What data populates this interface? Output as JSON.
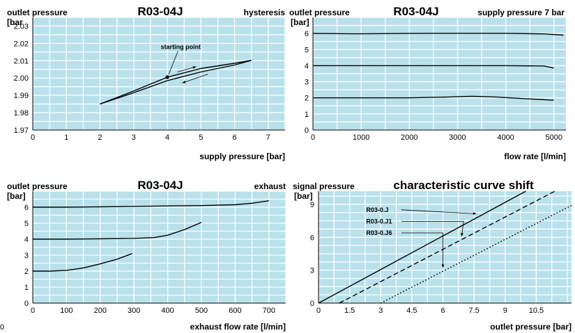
{
  "footer_mark": "0",
  "chart_data": [
    {
      "type": "line",
      "title": "R03-04J",
      "ylabel": "outlet pressure",
      "yunit": "[bar",
      "note": "hysteresis",
      "xlabel": "supply pressure [bar]",
      "xlim": [
        0,
        7.5
      ],
      "ylim": [
        1.97,
        2.035
      ],
      "xticks": [
        "0",
        "1",
        "2",
        "3",
        "4",
        "5",
        "6",
        "7"
      ],
      "xtick_values": [
        0,
        1,
        2,
        3,
        4,
        5,
        6,
        7
      ],
      "yticks": [
        "1.97",
        "1.98",
        "1.99",
        "2.00",
        "2.01",
        "2.02",
        "2.03"
      ],
      "ytick_values": [
        1.97,
        1.98,
        1.99,
        2.0,
        2.01,
        2.02,
        2.03
      ],
      "grid": {
        "x": 0.5,
        "y": 0.005
      },
      "series": [
        {
          "style": "solid",
          "x": [
            2,
            3,
            4,
            5,
            6,
            6.5
          ],
          "y": [
            1.985,
            1.9925,
            2.0005,
            2.0055,
            2.0085,
            2.0102
          ]
        },
        {
          "style": "solid",
          "x": [
            2,
            3,
            4,
            5,
            6,
            6.5
          ],
          "y": [
            1.985,
            1.9915,
            1.9985,
            2.0035,
            2.0075,
            2.0102
          ]
        }
      ],
      "annotations": [
        {
          "text": "starting point",
          "x": 4.4,
          "y": 2.0168,
          "target": [
            4.0,
            2.0005
          ],
          "marker": true
        },
        {
          "text": "",
          "arrow_from": [
            4.3,
            2.0035
          ],
          "arrow_to": [
            4.85,
            2.0065
          ]
        },
        {
          "text": "",
          "arrow_from": [
            5.2,
            2.0022
          ],
          "arrow_to": [
            4.45,
            1.9972
          ]
        }
      ]
    },
    {
      "type": "line",
      "title": "R03-04J",
      "ylabel": "outlet pressure",
      "yunit": "[bar]",
      "note": "supply pressure 7 bar",
      "xlabel": "flow rate [l/min]",
      "xlim": [
        0,
        5250
      ],
      "ylim": [
        0,
        7
      ],
      "xticks": [
        "0",
        "1000",
        "2000",
        "3000",
        "4000",
        "5000"
      ],
      "xtick_values": [
        0,
        1000,
        2000,
        3000,
        4000,
        5000
      ],
      "yticks": [
        "0",
        "1",
        "2",
        "3",
        "4",
        "5",
        "6"
      ],
      "ytick_values": [
        0,
        1,
        2,
        3,
        4,
        5,
        6
      ],
      "grid": {
        "x": 500,
        "y": 0.5
      },
      "series": [
        {
          "style": "solid",
          "x": [
            0,
            1000,
            2000,
            3000,
            4000,
            4800,
            5200
          ],
          "y": [
            6,
            5.98,
            6.0,
            6.01,
            6.01,
            5.97,
            5.9
          ]
        },
        {
          "style": "solid",
          "x": [
            0,
            1000,
            2000,
            3000,
            4000,
            4800,
            5000
          ],
          "y": [
            4,
            4.0,
            4.0,
            4.0,
            4.0,
            3.98,
            3.85
          ]
        },
        {
          "style": "solid",
          "x": [
            0,
            1000,
            2000,
            2800,
            3300,
            3800,
            4400,
            5000
          ],
          "y": [
            2,
            2.0,
            2.0,
            2.05,
            2.1,
            2.05,
            1.95,
            1.85
          ]
        }
      ]
    },
    {
      "type": "line",
      "title": "R03-04J",
      "ylabel": "outlet pressure",
      "yunit": "[bar]",
      "note": "exhaust",
      "xlabel": "exhaust flow rate [l/min]",
      "xlim": [
        0,
        750
      ],
      "ylim": [
        0,
        7
      ],
      "xticks": [
        "0",
        "100",
        "200",
        "300",
        "400",
        "500",
        "600",
        "700"
      ],
      "xtick_values": [
        0,
        100,
        200,
        300,
        400,
        500,
        600,
        700
      ],
      "yticks": [
        "0",
        "1",
        "2",
        "3",
        "4",
        "5",
        "6"
      ],
      "ytick_values": [
        0,
        1,
        2,
        3,
        4,
        5,
        6
      ],
      "grid": {
        "x": 50,
        "y": 0.5
      },
      "series": [
        {
          "style": "solid",
          "x": [
            0,
            100,
            200,
            300,
            400,
            500,
            600,
            650,
            700
          ],
          "y": [
            6,
            6.0,
            6.02,
            6.05,
            6.08,
            6.1,
            6.15,
            6.25,
            6.4
          ]
        },
        {
          "style": "solid",
          "x": [
            0,
            100,
            200,
            300,
            360,
            400,
            450,
            500
          ],
          "y": [
            4,
            4.0,
            4.02,
            4.05,
            4.1,
            4.25,
            4.6,
            5.05
          ]
        },
        {
          "style": "solid",
          "x": [
            0,
            50,
            100,
            150,
            200,
            250,
            295
          ],
          "y": [
            2,
            2.0,
            2.05,
            2.2,
            2.45,
            2.75,
            3.1
          ]
        }
      ]
    },
    {
      "type": "line",
      "title": "characteristic curve shift",
      "ylabel": "signal pressure",
      "yunit": "[bar]",
      "xlabel": "outlet pressure [bar]",
      "xlim": [
        0,
        12.2
      ],
      "ylim": [
        0,
        10.2
      ],
      "xticks": [
        "0",
        "1.5",
        "3",
        "4.5",
        "6",
        "7.5",
        "9",
        "10.5"
      ],
      "xtick_values": [
        0,
        1.5,
        3,
        4.5,
        6,
        7.5,
        9,
        10.5
      ],
      "yticks": [
        "0",
        "3",
        "6",
        "9"
      ],
      "ytick_values": [
        0,
        3,
        6,
        9
      ],
      "grid": {
        "x": 0.75,
        "y": 0.75
      },
      "series": [
        {
          "name": "R03-0.J",
          "style": "solid",
          "x": [
            0,
            10.0
          ],
          "y": [
            0,
            10.2
          ]
        },
        {
          "name": "R03-0.J1",
          "style": "dashed",
          "x": [
            1.0,
            11.4
          ],
          "y": [
            0,
            10.2
          ]
        },
        {
          "name": "R03-0.J6",
          "style": "dotted",
          "x": [
            3.0,
            12.2
          ],
          "y": [
            0,
            8.9
          ]
        }
      ],
      "annotations": [
        {
          "text": "R03-0.J",
          "x": 2.3,
          "y": 8.5,
          "arrow_from": [
            4.0,
            8.5
          ],
          "arrow_to": [
            7.6,
            8.15
          ]
        },
        {
          "text": "R03-0.J1",
          "x": 2.3,
          "y": 7.45,
          "arrow_from": [
            4.0,
            7.45
          ],
          "arrow_to": [
            7.0,
            7.45
          ],
          "arrow_end": [
            6.9,
            6.1
          ]
        },
        {
          "text": "R03-0.J6",
          "x": 2.3,
          "y": 6.4,
          "arrow_from": [
            4.0,
            6.4
          ],
          "arrow_to": [
            6.0,
            6.4
          ],
          "arrow_end": [
            6.0,
            3.25
          ]
        }
      ]
    }
  ]
}
